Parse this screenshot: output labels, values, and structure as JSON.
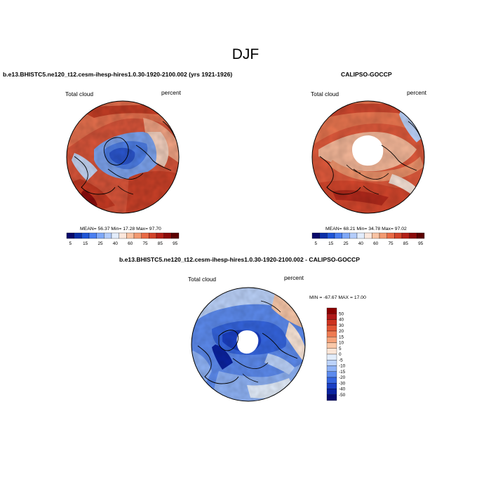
{
  "title": "DJF",
  "panels": [
    {
      "heading": "b.e13.BHISTC5.ne120_t12.cesm-ihesp-hires1.0.30-1920-2100.002 (yrs 1921-1926)",
      "left_label": "Total cloud",
      "right_label": "percent",
      "stats": "MEAN=  56.37  Min=  17.28  Max=  97.70"
    },
    {
      "heading": "CALIPSO-GOCCP",
      "left_label": "Total cloud",
      "right_label": "percent",
      "stats": "MEAN=  68.21  Min=  34.78  Max=  97.02"
    },
    {
      "heading": "b.e13.BHISTC5.ne120_t12.cesm-ihesp-hires1.0.30-1920-2100.002 - CALIPSO-GOCCP",
      "left_label": "Total cloud",
      "right_label": "percent",
      "stats": "MIN = -67.67  MAX =  17.00"
    }
  ],
  "colorbar_abs": {
    "ticks": [
      "5",
      "15",
      "25",
      "40",
      "60",
      "75",
      "85",
      "95"
    ],
    "colors": [
      "#08086b",
      "#0a2fa8",
      "#1f55d6",
      "#4a7ff0",
      "#7fa8f7",
      "#b3ccfa",
      "#e2ecfb",
      "#fbe7dc",
      "#f9c3a3",
      "#f29a72",
      "#e86a45",
      "#d2432a",
      "#b32018",
      "#8b0a0a",
      "#5c0000"
    ]
  },
  "colorbar_diff": {
    "ticks": [
      "50",
      "40",
      "30",
      "20",
      "15",
      "10",
      "5",
      "0",
      "-5",
      "-10",
      "-15",
      "-20",
      "-30",
      "-40",
      "-50"
    ],
    "colors": [
      "#8b0000",
      "#b01818",
      "#cc3320",
      "#e05535",
      "#ee7b52",
      "#f5a37a",
      "#f9c8a9",
      "#fbe6d8",
      "#e3edfb",
      "#bcd3fb",
      "#8fb3f6",
      "#5d8bee",
      "#3565df",
      "#1a3fc3",
      "#0a22a0",
      "#050a70"
    ]
  },
  "chart_data": [
    {
      "type": "heatmap",
      "projection": "north polar stereographic",
      "variable": "Total cloud",
      "units": "percent",
      "mean": 56.37,
      "min": 17.28,
      "max": 97.7,
      "colorbar_levels": [
        5,
        15,
        25,
        40,
        60,
        75,
        85,
        95
      ]
    },
    {
      "type": "heatmap",
      "projection": "north polar stereographic",
      "variable": "Total cloud",
      "units": "percent",
      "mean": 68.21,
      "min": 34.78,
      "max": 97.02,
      "missing_data_over_pole": true,
      "colorbar_levels": [
        5,
        15,
        25,
        40,
        60,
        75,
        85,
        95
      ]
    },
    {
      "type": "heatmap",
      "projection": "north polar stereographic",
      "variable": "Total cloud",
      "units": "percent",
      "min": -67.67,
      "max": 17.0,
      "missing_data_over_pole": true,
      "colorbar_levels": [
        50,
        40,
        30,
        20,
        15,
        10,
        5,
        0,
        -5,
        -10,
        -15,
        -20,
        -30,
        -40,
        -50
      ]
    }
  ]
}
